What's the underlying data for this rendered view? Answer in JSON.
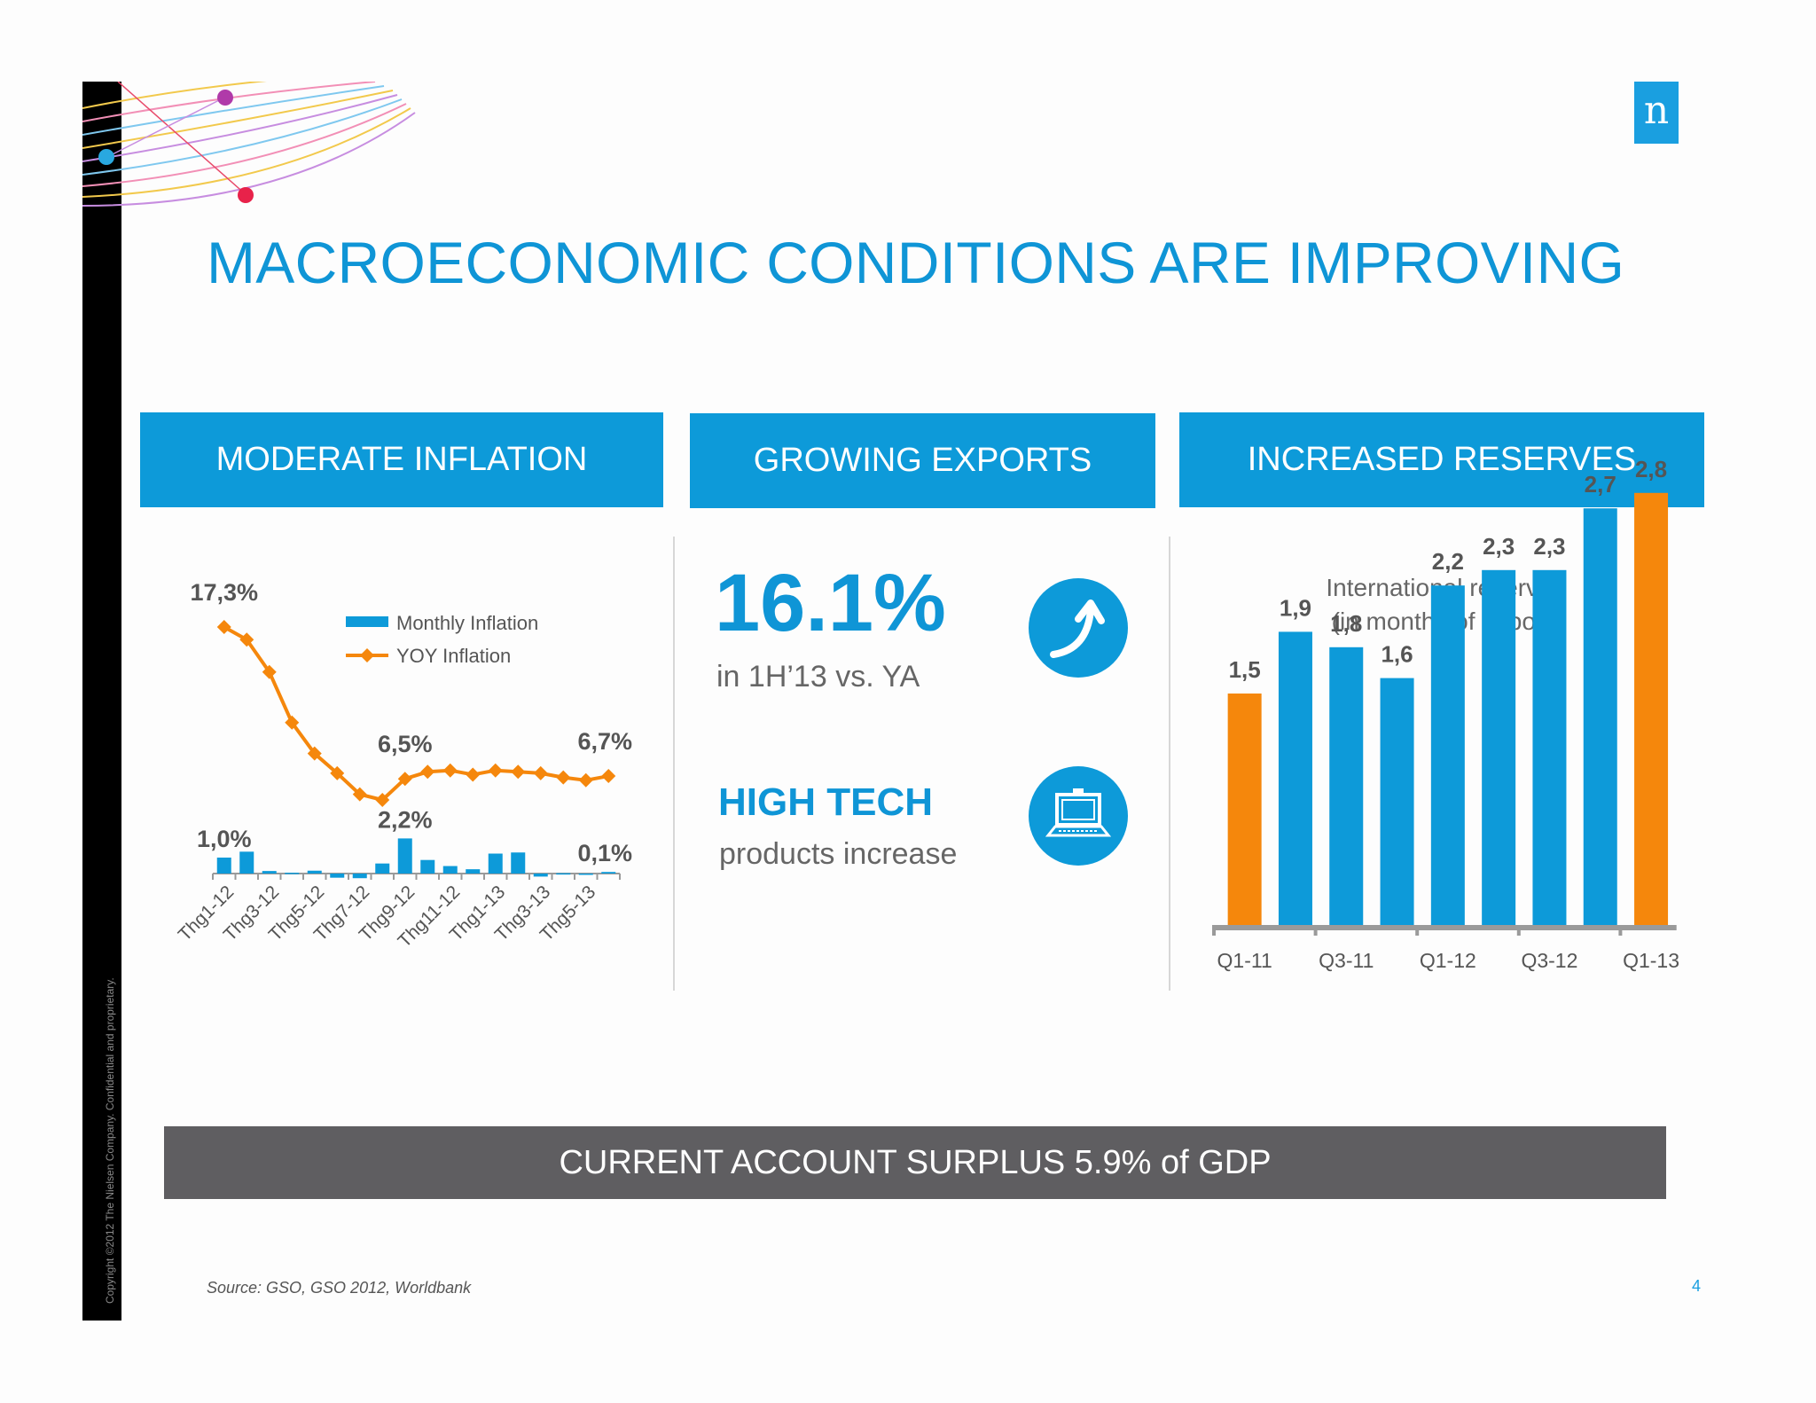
{
  "title": "MACROECONOMIC CONDITIONS ARE IMPROVING",
  "copyright": "Copyright ©2012 The Nielsen Company. Confidential and proprietary.",
  "logo": "n",
  "headers": {
    "inflation": "MODERATE INFLATION",
    "exports": "GROWING EXPORTS",
    "reserves": "INCREASED RESERVES"
  },
  "exports": {
    "stat": "16.1%",
    "stat_sub": "in 1H’13 vs. YA",
    "hightech": "HIGH TECH",
    "hightech_sub": "products increase",
    "icons": [
      "arrow-up-icon",
      "laptop-icon"
    ]
  },
  "reserves_title_1": "International reserves",
  "reserves_title_2": "(in months of import)",
  "surplus": "CURRENT ACCOUNT SURPLUS 5.9% of GDP",
  "source": "Source: GSO, GSO 2012, Worldbank",
  "page_number": "4",
  "colors": {
    "blue": "#0d9ad9",
    "orange": "#f5870c",
    "grey_bar": "#5f5e61"
  },
  "chart_data": [
    {
      "type": "bar+line",
      "categories": [
        "Thg1-12",
        "Thg2-12",
        "Thg3-12",
        "Thg4-12",
        "Thg5-12",
        "Thg6-12",
        "Thg7-12",
        "Thg8-12",
        "Thg9-12",
        "Thg10-12",
        "Thg11-12",
        "Thg12-12",
        "Thg1-13",
        "Thg2-13",
        "Thg3-13",
        "Thg4-13",
        "Thg5-13",
        "Thg6-13"
      ],
      "tick_labels": [
        "Thg1-12",
        "Thg3-12",
        "Thg5-12",
        "Thg7-12",
        "Thg9-12",
        "Thg11-12",
        "Thg1-13",
        "Thg3-13",
        "Thg5-13"
      ],
      "series": [
        {
          "name": "Monthly Inflation",
          "type": "bar",
          "values": [
            1.0,
            1.37,
            0.16,
            0.05,
            0.18,
            -0.26,
            -0.29,
            0.63,
            2.2,
            0.85,
            0.47,
            0.27,
            1.25,
            1.32,
            -0.19,
            0.02,
            -0.06,
            0.1
          ]
        },
        {
          "name": "YOY Inflation",
          "type": "line",
          "values": [
            17.3,
            16.4,
            14.1,
            10.5,
            8.3,
            6.9,
            5.4,
            5.0,
            6.5,
            7.0,
            7.1,
            6.8,
            7.1,
            7.0,
            6.9,
            6.6,
            6.4,
            6.7
          ]
        }
      ],
      "data_labels": [
        {
          "series": "YOY Inflation",
          "index": 0,
          "text": "17,3%"
        },
        {
          "series": "YOY Inflation",
          "index": 8,
          "text": "6,5%"
        },
        {
          "series": "YOY Inflation",
          "index": 17,
          "text": "6,7%"
        },
        {
          "series": "Monthly Inflation",
          "index": 0,
          "text": "1,0%"
        },
        {
          "series": "Monthly Inflation",
          "index": 8,
          "text": "2,2%"
        },
        {
          "series": "Monthly Inflation",
          "index": 17,
          "text": "0,1%"
        }
      ],
      "legend": "top-right"
    },
    {
      "type": "bar",
      "categories": [
        "Q1-11",
        "Q2-11",
        "Q3-11",
        "Q4-11",
        "Q1-12",
        "Q2-12",
        "Q3-12",
        "Q4-12",
        "Q1-13"
      ],
      "tick_labels": [
        "Q1-11",
        "Q3-11",
        "Q1-12",
        "Q3-12",
        "Q1-13"
      ],
      "values": [
        1.5,
        1.9,
        1.8,
        1.6,
        2.2,
        2.3,
        2.3,
        2.7,
        2.8
      ],
      "value_labels": [
        "1,5",
        "1,9",
        "1,8",
        "1,6",
        "2,2",
        "2,3",
        "2,3",
        "2,7",
        "2,8"
      ],
      "highlight_indices": [
        0,
        8
      ],
      "ylim": [
        0,
        3
      ]
    }
  ]
}
